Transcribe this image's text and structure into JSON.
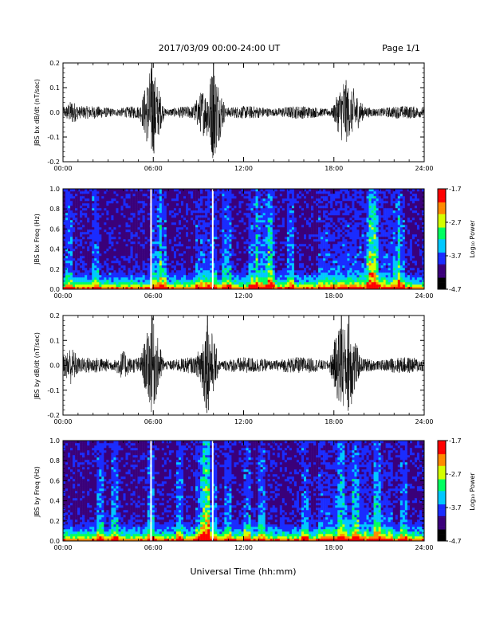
{
  "header": {
    "date_range": "2017/03/09   00:00-24:00 UT",
    "page": "Page 1/1"
  },
  "xaxis_label": "Universal Time (hh:mm)",
  "colorbar": {
    "label": "Log₁₀ Power",
    "ticks": [
      "-1.7",
      "-2.7",
      "-3.7",
      "-4.7"
    ],
    "range": [
      -4.7,
      -1.7
    ],
    "colors": [
      "#000000",
      "#3a007a",
      "#1a2cff",
      "#00c8ff",
      "#00ff60",
      "#d4ff00",
      "#ff8a00",
      "#ff0000"
    ]
  },
  "chart_data": [
    {
      "type": "line",
      "ylabel": "JBS bx dB/dt (nT/sec)",
      "xlim": [
        0,
        24
      ],
      "ylim": [
        -0.2,
        0.2
      ],
      "xticks": [
        "00:00",
        "06:00",
        "12:00",
        "18:00",
        "24:00"
      ],
      "yticks": [
        "0.2",
        "0.1",
        "0.0",
        "-0.1",
        "-0.2"
      ],
      "baseline_amplitude": 0.02,
      "bursts": [
        {
          "t": 0.6,
          "amp": 0.05
        },
        {
          "t": 5.9,
          "amp": 0.2
        },
        {
          "t": 9.3,
          "amp": 0.1
        },
        {
          "t": 10.0,
          "amp": 0.2
        },
        {
          "t": 18.7,
          "amp": 0.15
        },
        {
          "t": 19.3,
          "amp": 0.1
        }
      ]
    },
    {
      "type": "heatmap",
      "ylabel": "JBS bx Freq (Hz)",
      "xlim": [
        0,
        24
      ],
      "ylim": [
        0.0,
        1.0
      ],
      "xticks": [
        "00:00",
        "06:00",
        "12:00",
        "18:00",
        "24:00"
      ],
      "yticks": [
        "1.0",
        "0.8",
        "0.6",
        "0.4",
        "0.2",
        "0.0"
      ],
      "zlim": [
        -4.7,
        -1.7
      ],
      "data_gaps": [
        5.85,
        9.95
      ]
    },
    {
      "type": "line",
      "ylabel": "JBS by dB/dt (nT/sec)",
      "xlim": [
        0,
        24
      ],
      "ylim": [
        -0.2,
        0.2
      ],
      "xticks": [
        "00:00",
        "06:00",
        "12:00",
        "18:00",
        "24:00"
      ],
      "yticks": [
        "0.2",
        "0.1",
        "0.0",
        "-0.1",
        "-0.2"
      ],
      "baseline_amplitude": 0.025,
      "bursts": [
        {
          "t": 0.5,
          "amp": 0.08
        },
        {
          "t": 4.0,
          "amp": 0.06
        },
        {
          "t": 5.9,
          "amp": 0.2
        },
        {
          "t": 9.6,
          "amp": 0.2
        },
        {
          "t": 18.5,
          "amp": 0.2
        },
        {
          "t": 19.0,
          "amp": 0.2
        }
      ]
    },
    {
      "type": "heatmap",
      "ylabel": "JBS by Freq (Hz)",
      "xlim": [
        0,
        24
      ],
      "ylim": [
        0.0,
        1.0
      ],
      "xticks": [
        "00:00",
        "06:00",
        "12:00",
        "18:00",
        "24:00"
      ],
      "yticks": [
        "1.0",
        "0.8",
        "0.6",
        "0.4",
        "0.2",
        "0.0"
      ],
      "zlim": [
        -4.7,
        -1.7
      ],
      "data_gaps": [
        5.85,
        9.95
      ]
    }
  ]
}
